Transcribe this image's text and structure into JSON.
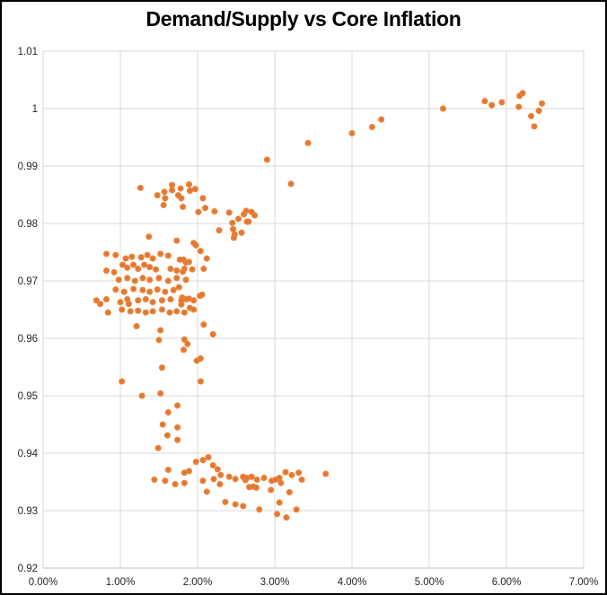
{
  "chart_data": {
    "type": "scatter",
    "title": "Demand/Supply vs Core Inflation",
    "xlabel": "",
    "ylabel": "",
    "xlim": [
      0,
      7
    ],
    "ylim": [
      0.92,
      1.01
    ],
    "grid": true,
    "legend": false,
    "marker_color": "#ED7D31",
    "marker_center_color": "#8a7365",
    "grid_color": "#D9D9D9",
    "axis_line_color": "#BFBFBF",
    "tick_label_color": "#262626",
    "x_ticks": {
      "values": [
        0,
        1,
        2,
        3,
        4,
        5,
        6,
        7
      ],
      "labels": [
        "0.00%",
        "1.00%",
        "2.00%",
        "3.00%",
        "4.00%",
        "5.00%",
        "6.00%",
        "7.00%"
      ]
    },
    "y_ticks": {
      "values": [
        0.92,
        0.93,
        0.94,
        0.95,
        0.96,
        0.97,
        0.98,
        0.99,
        1.0,
        1.01
      ],
      "labels": [
        "0.92",
        "0.93",
        "0.94",
        "0.95",
        "0.96",
        "0.97",
        "0.98",
        "0.99",
        "1",
        "1.01"
      ]
    },
    "series": [
      {
        "name": "Demand/Supply vs Core Inflation",
        "x_unit": "percent",
        "points": [
          [
            5.18,
            1.0
          ],
          [
            5.72,
            1.0013
          ],
          [
            5.81,
            1.0006
          ],
          [
            5.94,
            1.0011
          ],
          [
            6.17,
            1.0022
          ],
          [
            6.21,
            1.0027
          ],
          [
            6.16,
            1.0003
          ],
          [
            6.46,
            1.0009
          ],
          [
            6.42,
            0.9996
          ],
          [
            6.32,
            0.9987
          ],
          [
            6.36,
            0.9969
          ],
          [
            2.9,
            0.9911
          ],
          [
            3.21,
            0.9869
          ],
          [
            3.43,
            0.994
          ],
          [
            4.0,
            0.9957
          ],
          [
            4.26,
            0.9968
          ],
          [
            4.38,
            0.9981
          ],
          [
            1.26,
            0.9862
          ],
          [
            1.67,
            0.9867
          ],
          [
            1.78,
            0.9861
          ],
          [
            1.89,
            0.9868
          ],
          [
            1.9,
            0.9857
          ],
          [
            1.97,
            0.986
          ],
          [
            1.48,
            0.9849
          ],
          [
            1.57,
            0.9855
          ],
          [
            1.58,
            0.9844
          ],
          [
            1.67,
            0.9858
          ],
          [
            1.75,
            0.9849
          ],
          [
            1.79,
            0.9844
          ],
          [
            1.56,
            0.9832
          ],
          [
            2.07,
            0.9844
          ],
          [
            1.81,
            0.9829
          ],
          [
            2.01,
            0.982
          ],
          [
            2.1,
            0.9827
          ],
          [
            2.22,
            0.9821
          ],
          [
            2.41,
            0.9819
          ],
          [
            2.53,
            0.9808
          ],
          [
            2.6,
            0.9816
          ],
          [
            2.63,
            0.9822
          ],
          [
            2.66,
            0.9803
          ],
          [
            2.7,
            0.982
          ],
          [
            2.74,
            0.9814
          ],
          [
            2.45,
            0.9801
          ],
          [
            2.64,
            0.9803
          ],
          [
            2.28,
            0.9788
          ],
          [
            2.46,
            0.979
          ],
          [
            2.48,
            0.9781
          ],
          [
            2.57,
            0.9784
          ],
          [
            2.47,
            0.9775
          ],
          [
            1.37,
            0.9777
          ],
          [
            1.98,
            0.9762
          ],
          [
            1.73,
            0.977
          ],
          [
            1.95,
            0.9766
          ],
          [
            0.82,
            0.9747
          ],
          [
            0.94,
            0.9745
          ],
          [
            1.07,
            0.9739
          ],
          [
            1.15,
            0.9742
          ],
          [
            1.27,
            0.9741
          ],
          [
            1.35,
            0.9745
          ],
          [
            1.42,
            0.9739
          ],
          [
            1.52,
            0.9747
          ],
          [
            1.62,
            0.9744
          ],
          [
            1.77,
            0.9737
          ],
          [
            1.89,
            0.9733
          ],
          [
            2.04,
            0.9752
          ],
          [
            2.12,
            0.9739
          ],
          [
            1.82,
            0.9737
          ],
          [
            1.85,
            0.9732
          ],
          [
            0.82,
            0.9718
          ],
          [
            0.92,
            0.9715
          ],
          [
            1.03,
            0.9728
          ],
          [
            1.09,
            0.9723
          ],
          [
            1.17,
            0.9728
          ],
          [
            1.23,
            0.9721
          ],
          [
            1.31,
            0.9728
          ],
          [
            1.38,
            0.9724
          ],
          [
            1.46,
            0.972
          ],
          [
            1.65,
            0.9721
          ],
          [
            1.73,
            0.9718
          ],
          [
            1.81,
            0.9716
          ],
          [
            1.83,
            0.9721
          ],
          [
            1.93,
            0.972
          ],
          [
            2.08,
            0.9721
          ],
          [
            0.98,
            0.9702
          ],
          [
            1.09,
            0.9705
          ],
          [
            1.19,
            0.97
          ],
          [
            1.29,
            0.9705
          ],
          [
            1.38,
            0.9702
          ],
          [
            1.5,
            0.9705
          ],
          [
            1.62,
            0.97
          ],
          [
            1.73,
            0.9705
          ],
          [
            1.85,
            0.9702
          ],
          [
            1.76,
            0.9689
          ],
          [
            0.94,
            0.9685
          ],
          [
            1.05,
            0.9681
          ],
          [
            1.17,
            0.9686
          ],
          [
            1.29,
            0.9684
          ],
          [
            1.38,
            0.9681
          ],
          [
            1.48,
            0.9685
          ],
          [
            1.58,
            0.9681
          ],
          [
            1.69,
            0.9684
          ],
          [
            1.8,
            0.9671
          ],
          [
            2.03,
            0.9674
          ],
          [
            1.89,
            0.9669
          ],
          [
            0.69,
            0.9666
          ],
          [
            0.74,
            0.966
          ],
          [
            0.82,
            0.9668
          ],
          [
            1.0,
            0.9663
          ],
          [
            1.09,
            0.9668
          ],
          [
            1.11,
            0.966
          ],
          [
            1.23,
            0.9666
          ],
          [
            1.33,
            0.9668
          ],
          [
            1.42,
            0.9663
          ],
          [
            1.54,
            0.9666
          ],
          [
            1.65,
            0.9668
          ],
          [
            1.79,
            0.9666
          ],
          [
            1.85,
            0.9668
          ],
          [
            1.95,
            0.9666
          ],
          [
            2.06,
            0.9676
          ],
          [
            1.79,
            0.9659
          ],
          [
            0.84,
            0.9645
          ],
          [
            1.02,
            0.965
          ],
          [
            1.13,
            0.9647
          ],
          [
            1.23,
            0.9648
          ],
          [
            1.33,
            0.9645
          ],
          [
            1.42,
            0.9647
          ],
          [
            1.54,
            0.965
          ],
          [
            1.64,
            0.9645
          ],
          [
            1.73,
            0.9647
          ],
          [
            1.83,
            0.9645
          ],
          [
            1.95,
            0.965
          ],
          [
            1.9,
            0.9653
          ],
          [
            1.21,
            0.9621
          ],
          [
            1.52,
            0.9614
          ],
          [
            2.08,
            0.9624
          ],
          [
            2.2,
            0.9607
          ],
          [
            1.83,
            0.9598
          ],
          [
            1.5,
            0.9597
          ],
          [
            1.87,
            0.959
          ],
          [
            1.82,
            0.958
          ],
          [
            1.54,
            0.9549
          ],
          [
            1.99,
            0.9561
          ],
          [
            2.04,
            0.9565
          ],
          [
            1.02,
            0.9525
          ],
          [
            2.04,
            0.9525
          ],
          [
            1.28,
            0.95
          ],
          [
            1.52,
            0.9504
          ],
          [
            1.74,
            0.9483
          ],
          [
            1.62,
            0.9471
          ],
          [
            1.55,
            0.945
          ],
          [
            1.74,
            0.9445
          ],
          [
            1.61,
            0.9431
          ],
          [
            1.74,
            0.9423
          ],
          [
            1.49,
            0.9409
          ],
          [
            1.98,
            0.9385
          ],
          [
            2.07,
            0.9388
          ],
          [
            2.14,
            0.9393
          ],
          [
            2.2,
            0.9379
          ],
          [
            2.26,
            0.9372
          ],
          [
            2.3,
            0.9362
          ],
          [
            1.62,
            0.9371
          ],
          [
            1.83,
            0.9366
          ],
          [
            1.89,
            0.9369
          ],
          [
            1.44,
            0.9354
          ],
          [
            1.58,
            0.9352
          ],
          [
            1.71,
            0.9346
          ],
          [
            1.83,
            0.9348
          ],
          [
            2.07,
            0.9352
          ],
          [
            2.21,
            0.9355
          ],
          [
            2.29,
            0.9346
          ],
          [
            2.41,
            0.9359
          ],
          [
            2.49,
            0.9355
          ],
          [
            2.59,
            0.9359
          ],
          [
            2.62,
            0.9353
          ],
          [
            2.64,
            0.9357
          ],
          [
            2.7,
            0.9359
          ],
          [
            2.77,
            0.9354
          ],
          [
            2.67,
            0.9341
          ],
          [
            2.76,
            0.934
          ],
          [
            2.72,
            0.9342
          ],
          [
            2.12,
            0.9333
          ],
          [
            2.36,
            0.9315
          ],
          [
            2.49,
            0.9311
          ],
          [
            2.59,
            0.9308
          ],
          [
            2.8,
            0.9302
          ],
          [
            2.86,
            0.9357
          ],
          [
            2.96,
            0.9352
          ],
          [
            3.01,
            0.9354
          ],
          [
            3.06,
            0.9357
          ],
          [
            3.08,
            0.9348
          ],
          [
            3.14,
            0.9367
          ],
          [
            3.22,
            0.9362
          ],
          [
            3.31,
            0.9366
          ],
          [
            3.35,
            0.9354
          ],
          [
            3.66,
            0.9364
          ],
          [
            2.95,
            0.9336
          ],
          [
            3.19,
            0.9332
          ],
          [
            3.06,
            0.9314
          ],
          [
            3.28,
            0.9302
          ],
          [
            3.03,
            0.9294
          ],
          [
            3.15,
            0.9288
          ]
        ]
      }
    ]
  }
}
